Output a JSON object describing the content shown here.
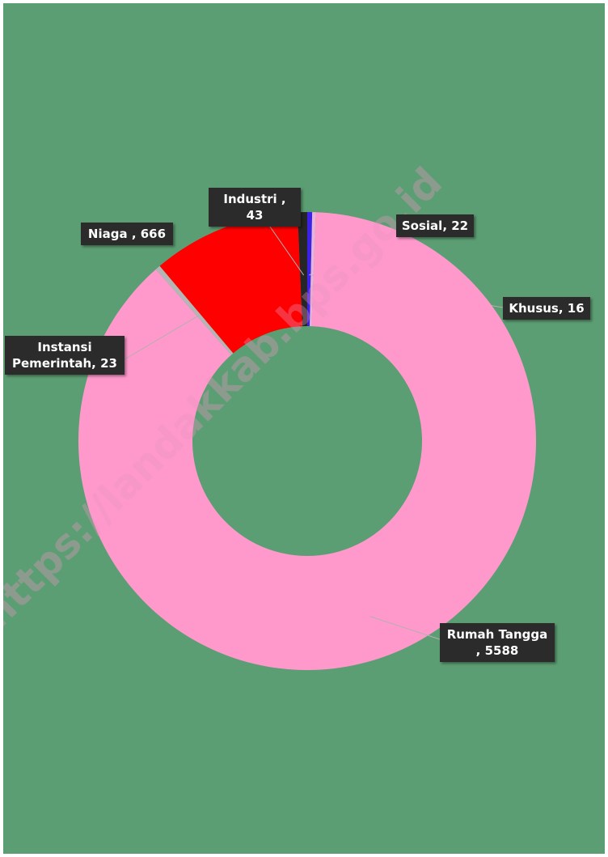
{
  "chart_data": {
    "type": "donut",
    "categories": [
      "Sosial",
      "Khusus",
      "Rumah Tangga",
      "Instansi Pemerintah",
      "Niaga",
      "Industri"
    ],
    "values": [
      22,
      16,
      5588,
      23,
      666,
      43
    ],
    "value_labels": [
      "Sosial, 22",
      "Khusus, 16",
      "Rumah Tangga , 5588",
      "Instansi Pemerintah, 23",
      "Niaga , 666",
      "Industri , 43"
    ],
    "colors": [
      "#3b22e6",
      "#e8b4dc",
      "#ff99cc",
      "#b5b5b5",
      "#ff0000",
      "#262626"
    ],
    "watermark": "https://landakkab.bps.go.id"
  }
}
